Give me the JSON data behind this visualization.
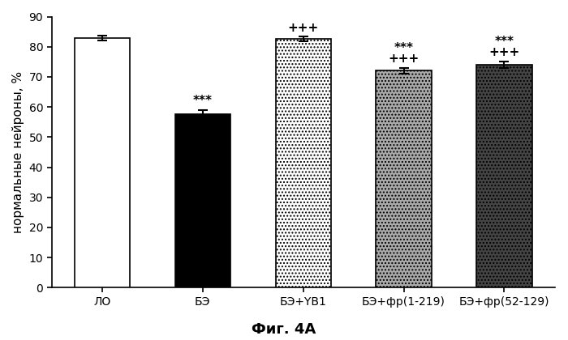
{
  "categories": [
    "ЛО",
    "БЭ",
    "БЭ+YB1",
    "БЭ+фр(1-219)",
    "БЭ+фр(52-129)"
  ],
  "values": [
    83.0,
    57.5,
    82.5,
    72.0,
    74.0
  ],
  "errors": [
    0.8,
    1.5,
    0.8,
    1.0,
    1.2
  ],
  "bar_colors": [
    "white",
    "black",
    "white",
    "#aaaaaa",
    "#444444"
  ],
  "bar_hatches": [
    null,
    null,
    "....",
    "....",
    "...."
  ],
  "bar_edgecolors": [
    "black",
    "black",
    "black",
    "black",
    "black"
  ],
  "ann_star": [
    null,
    "***",
    null,
    "***",
    "***"
  ],
  "ann_plus": [
    null,
    null,
    "+++",
    "+++",
    "+++"
  ],
  "title": "Фиг. 4A",
  "ylabel": "нормальные нейроны, %",
  "ylim": [
    0,
    90
  ],
  "yticks": [
    0,
    10,
    20,
    30,
    40,
    50,
    60,
    70,
    80,
    90
  ],
  "figsize": [
    7.0,
    4.2
  ],
  "dpi": 100,
  "background_color": "white",
  "annotation_fontsize": 11,
  "ylabel_fontsize": 11,
  "xlabel_fontsize": 10,
  "title_fontsize": 13
}
